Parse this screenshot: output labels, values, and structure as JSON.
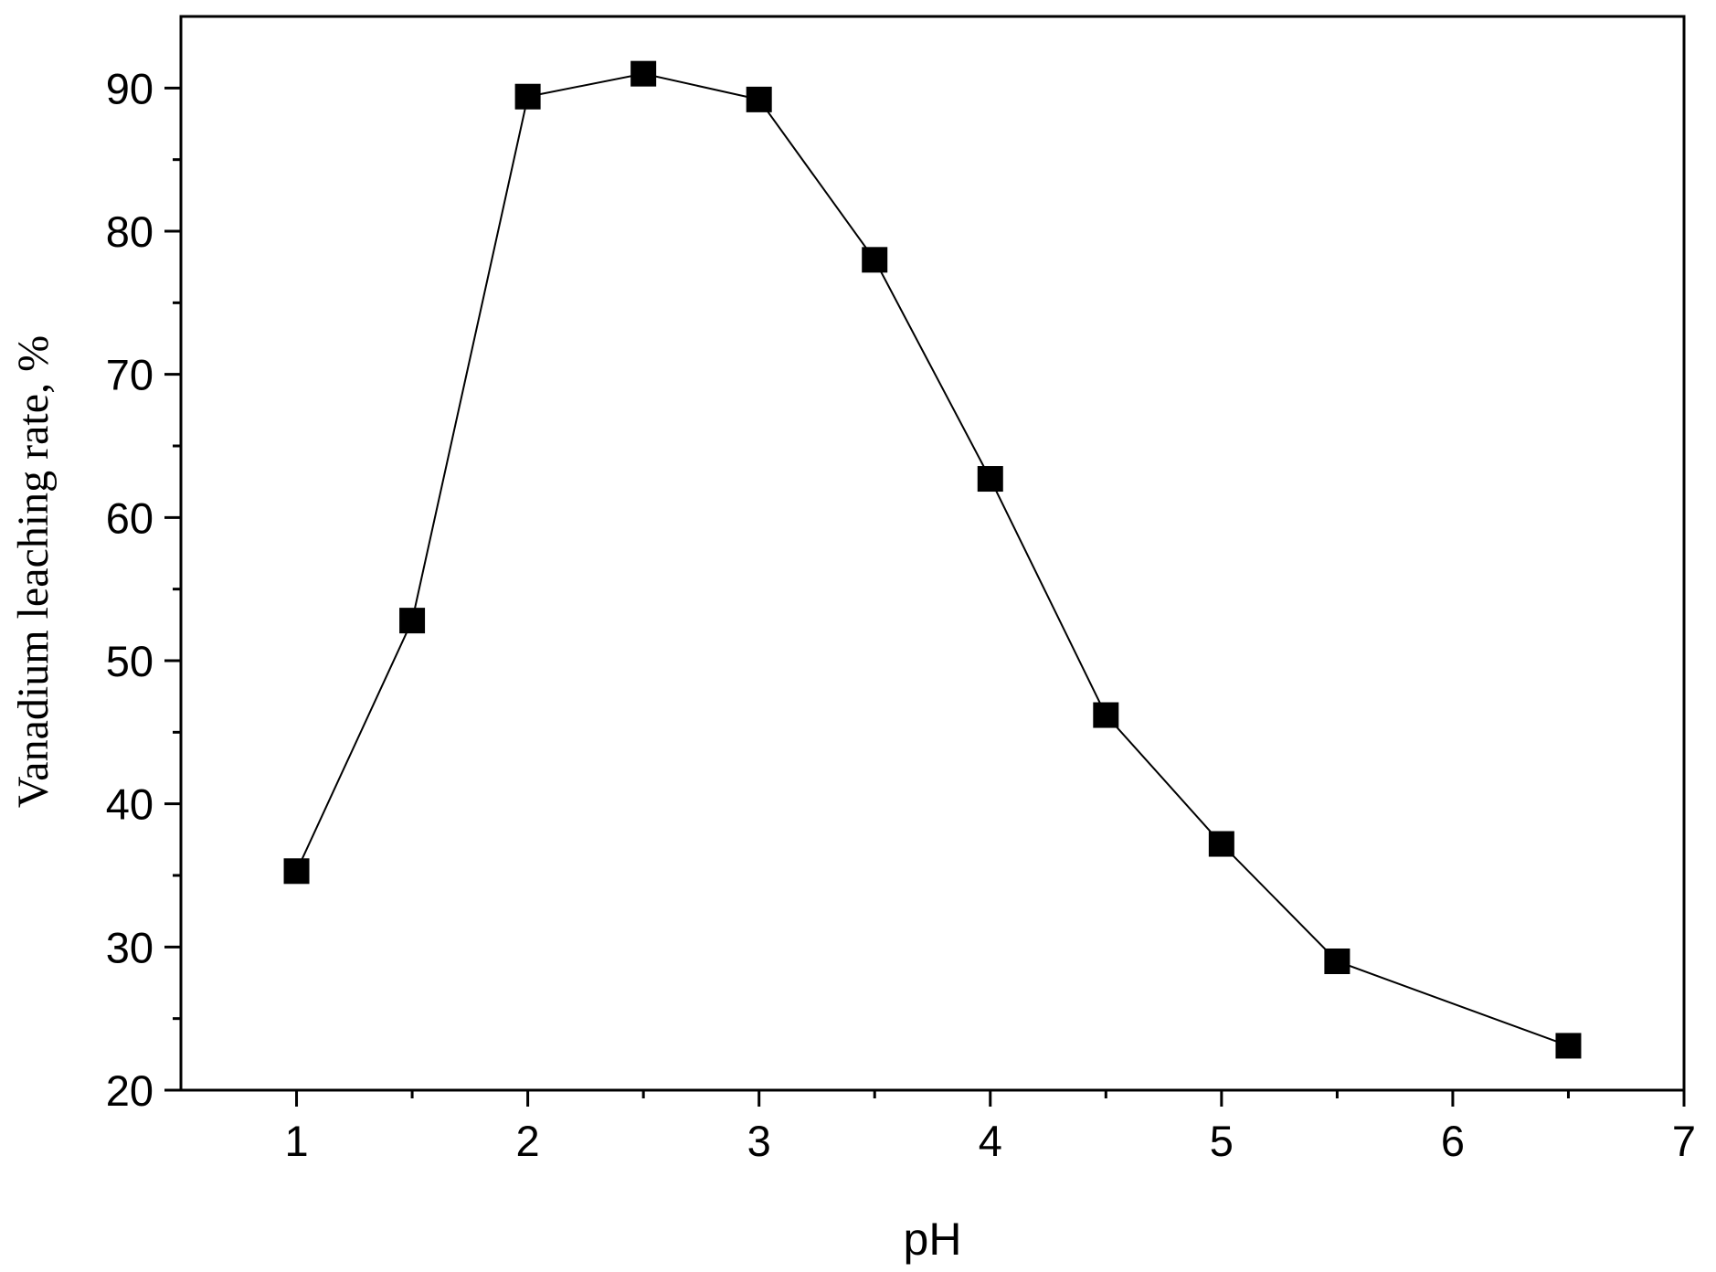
{
  "chart_data": {
    "type": "line",
    "title": "",
    "xlabel": "pH",
    "ylabel": "Vanadium leaching rate, %",
    "xlim": [
      0.5,
      7
    ],
    "ylim": [
      20,
      95
    ],
    "x_ticks": [
      1,
      2,
      3,
      4,
      5,
      6,
      7
    ],
    "x_tick_labels": [
      "1",
      "2",
      "3",
      "4",
      "5",
      "6",
      "7"
    ],
    "x_minor_ticks": [
      1.5,
      2.5,
      3.5,
      4.5,
      5.5,
      6.5
    ],
    "y_ticks": [
      20,
      30,
      40,
      50,
      60,
      70,
      80,
      90
    ],
    "y_tick_labels": [
      "20",
      "30",
      "40",
      "50",
      "60",
      "70",
      "80",
      "90"
    ],
    "y_minor_ticks": [
      25,
      35,
      45,
      55,
      65,
      75,
      85
    ],
    "grid": false,
    "legend": "none",
    "marker": "square",
    "color": "#000000",
    "series": [
      {
        "x": [
          1,
          1.5,
          2,
          2.5,
          3,
          3.5,
          4,
          4.5,
          5,
          5.5,
          6.5
        ],
        "y": [
          35.3,
          52.8,
          89.4,
          91.0,
          89.2,
          78.0,
          62.7,
          46.2,
          37.2,
          29.0,
          23.1
        ]
      }
    ]
  }
}
